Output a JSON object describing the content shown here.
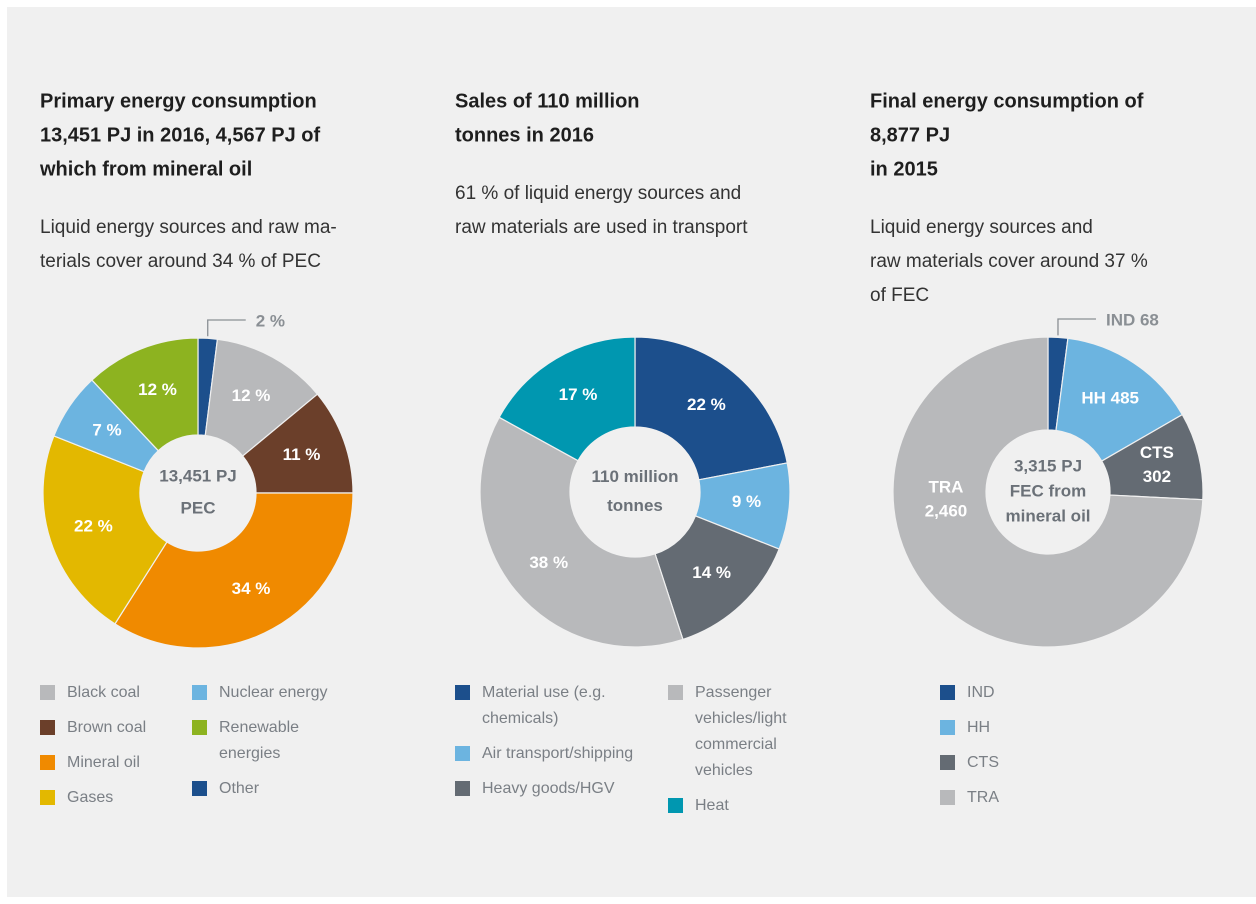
{
  "chart_data": [
    {
      "type": "donut",
      "title": [
        "Primary energy consumption",
        "13,451 PJ in 2016, 4,567 PJ of",
        "which from mineral oil"
      ],
      "subtitle": [
        "Liquid energy sources and raw ma-",
        "terials cover around 34 % of PEC"
      ],
      "center_label": [
        "13,451 PJ",
        "PEC"
      ],
      "categories": [
        "Black coal",
        "Brown coal",
        "Mineral oil",
        "Gases",
        "Nuclear energy",
        "Renewable energies",
        "Other"
      ],
      "values": [
        12,
        11,
        34,
        22,
        7,
        12,
        2
      ],
      "value_labels": [
        "12 %",
        "11 %",
        "34 %",
        "22 %",
        "7 %",
        "12 %",
        "2 %"
      ],
      "colors": [
        "#b8b9bb",
        "#6b3f2a",
        "#f08a00",
        "#e3b800",
        "#6cb4e0",
        "#8db320",
        "#1c4f8c"
      ]
    },
    {
      "type": "donut",
      "title": [
        "Sales of 110 million",
        "tonnes in 2016"
      ],
      "subtitle": [
        "61 % of liquid energy sources and",
        "raw materials are used in transport"
      ],
      "center_label": [
        "110 million",
        "tonnes"
      ],
      "categories": [
        "Material use (e.g. chemicals)",
        "Air transport/shipping",
        "Heavy goods/HGV",
        "Passenger vehicles/light commercial vehicles",
        "Heat"
      ],
      "values": [
        22,
        9,
        14,
        38,
        17
      ],
      "value_labels": [
        "22 %",
        "9 %",
        "14 %",
        "38 %",
        "17 %"
      ],
      "colors": [
        "#1c4f8c",
        "#6cb4e0",
        "#646b73",
        "#b8b9bb",
        "#0097b0"
      ]
    },
    {
      "type": "donut",
      "title": [
        "Final energy consumption of",
        "8,877 PJ",
        "in 2015"
      ],
      "subtitle": [
        "Liquid energy sources and",
        "raw materials cover around 37 %",
        "of FEC"
      ],
      "center_label": [
        "3,315 PJ",
        "FEC from",
        "mineral oil"
      ],
      "categories": [
        "IND",
        "HH",
        "CTS",
        "TRA"
      ],
      "values": [
        68,
        485,
        302,
        2460
      ],
      "value_labels": [
        [
          "IND 68"
        ],
        [
          "HH 485"
        ],
        [
          "CTS",
          "302"
        ],
        [
          "TRA",
          "2,460"
        ]
      ],
      "colors": [
        "#1c4f8c",
        "#6cb4e0",
        "#646b73",
        "#b8b9bb"
      ]
    }
  ]
}
